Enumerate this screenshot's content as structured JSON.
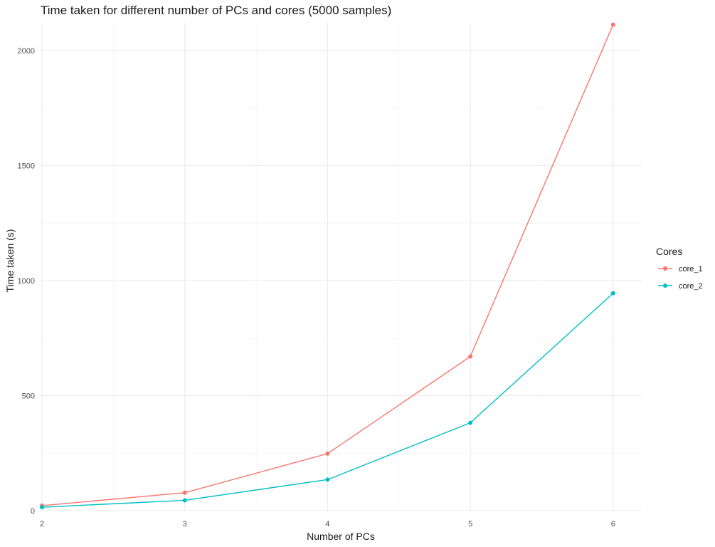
{
  "chart_data": {
    "type": "line",
    "title": "Time taken for different number of PCs and cores (5000 samples)",
    "xlabel": "Number of PCs",
    "ylabel": "Time taken (s)",
    "x": [
      2,
      3,
      4,
      5,
      6
    ],
    "xlim": [
      1.99,
      6.2
    ],
    "ylim": [
      0,
      2120
    ],
    "x_ticks": [
      2,
      3,
      4,
      5,
      6
    ],
    "y_ticks": [
      0,
      500,
      1000,
      1500,
      2000
    ],
    "grid": true,
    "legend": {
      "title": "Cores",
      "position": "right"
    },
    "series": [
      {
        "name": "core_1",
        "color": "#F8766D",
        "values": [
          22,
          78,
          248,
          670,
          2112
        ]
      },
      {
        "name": "core_2",
        "color": "#00BFC4",
        "values": [
          15,
          45,
          135,
          382,
          945
        ]
      }
    ]
  }
}
